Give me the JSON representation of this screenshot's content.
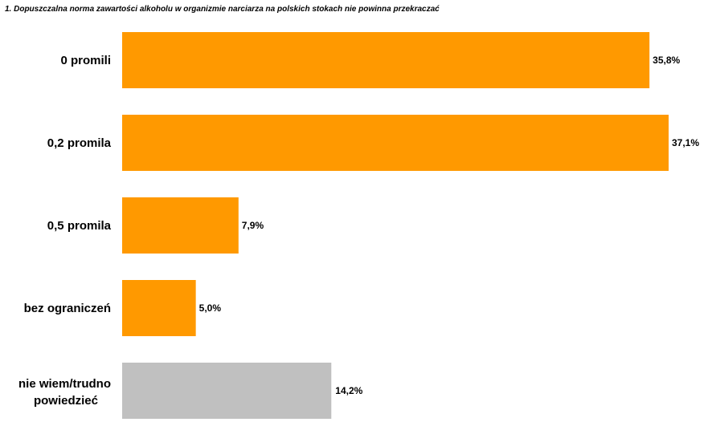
{
  "chart_data": {
    "type": "bar",
    "orientation": "horizontal",
    "title": "1. Dopuszczalna norma zawartości alkoholu w organizmie narciarza na polskich stokach nie powinna przekraczać",
    "categories": [
      "0 promili",
      "0,2 promila",
      "0,5 promila",
      "bez ograniczeń",
      "nie wiem/trudno powiedzieć"
    ],
    "values": [
      35.8,
      37.1,
      7.9,
      5.0,
      14.2
    ],
    "value_labels": [
      "35,8%",
      "37,1%",
      "7,9%",
      "5,0%",
      "14,2%"
    ],
    "bar_colors": [
      "#ff9900",
      "#ff9900",
      "#ff9900",
      "#ff9900",
      "#c0c0c0"
    ],
    "xlim": [
      0,
      37.1
    ],
    "grid": false,
    "xlabel": "",
    "ylabel": ""
  }
}
